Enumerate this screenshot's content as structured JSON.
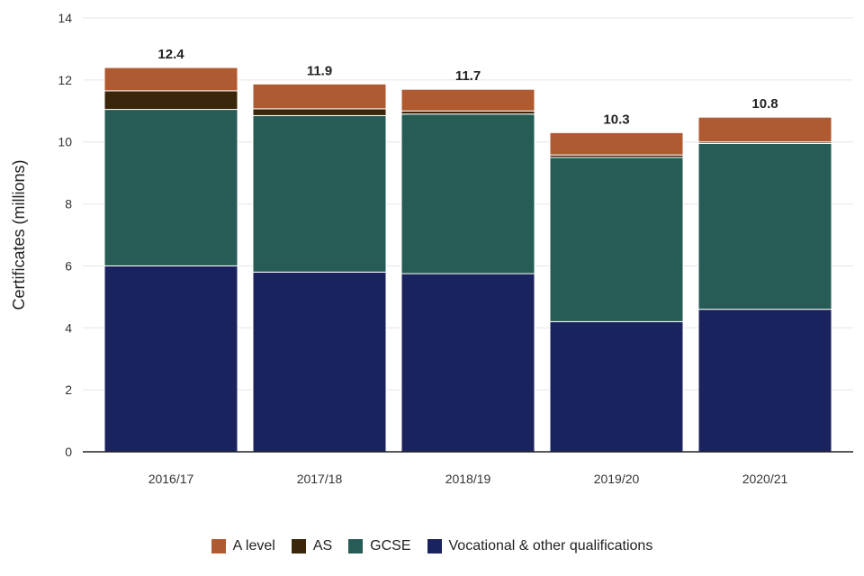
{
  "chart_data": {
    "type": "bar",
    "stacked": true,
    "ylabel": "Certificates (millions)",
    "xlabel": "",
    "ylim": [
      0,
      14
    ],
    "yticks": [
      0,
      2,
      4,
      6,
      8,
      10,
      12,
      14
    ],
    "grid": true,
    "categories": [
      "2016/17",
      "2017/18",
      "2018/19",
      "2019/20",
      "2020/21"
    ],
    "series": [
      {
        "name": "Vocational & other qualifications",
        "color": "#1b235e",
        "values": [
          6.0,
          5.8,
          5.75,
          4.2,
          4.6
        ]
      },
      {
        "name": "GCSE",
        "color": "#265c55",
        "values": [
          5.05,
          5.05,
          5.15,
          5.3,
          5.35
        ]
      },
      {
        "name": "AS",
        "color": "#3b250b",
        "values": [
          0.6,
          0.22,
          0.1,
          0.08,
          0.05
        ]
      },
      {
        "name": "A level",
        "color": "#b05a32",
        "values": [
          0.75,
          0.8,
          0.7,
          0.72,
          0.8
        ]
      }
    ],
    "totals": [
      "12.4",
      "11.9",
      "11.7",
      "10.3",
      "10.8"
    ],
    "legend": {
      "placement": "bottom",
      "order": [
        "A level",
        "AS",
        "GCSE",
        "Vocational & other qualifications"
      ]
    }
  }
}
